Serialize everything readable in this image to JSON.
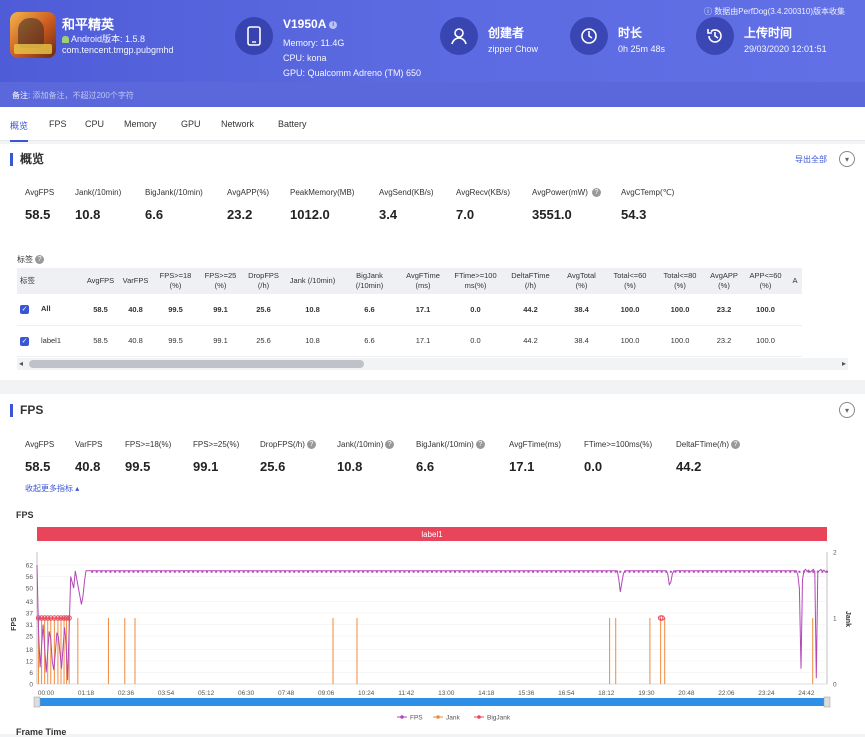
{
  "app": {
    "name": "和平精英",
    "android": "Android版本: 1.5.8",
    "package": "com.tencent.tmgp.pubgmhd"
  },
  "device": {
    "model": "V1950A",
    "memory": "Memory: 11.4G",
    "cpu": "CPU: kona",
    "gpu": "GPU: Qualcomm Adreno (TM) 650"
  },
  "creator": {
    "title": "创建者",
    "value": "zipper Chow"
  },
  "duration": {
    "title": "时长",
    "value": "0h 25m 48s"
  },
  "upload": {
    "title": "上传时间",
    "value": "29/03/2020 12:01:51"
  },
  "version_note": "数据由PerfDog(3.4.200310)版本收集",
  "note": {
    "label": "备注:",
    "placeholder": "添加备注，不超过200个字符"
  },
  "tabs": [
    "概览",
    "FPS",
    "CPU",
    "Memory",
    "GPU",
    "Network",
    "Battery"
  ],
  "overview": {
    "title": "概览",
    "export": "导出全部",
    "metrics": [
      {
        "label": "AvgFPS",
        "value": "58.5"
      },
      {
        "label": "Jank(/10min)",
        "value": "10.8"
      },
      {
        "label": "BigJank(/10min)",
        "value": "6.6"
      },
      {
        "label": "AvgAPP(%)",
        "value": "23.2"
      },
      {
        "label": "PeakMemory(MB)",
        "value": "1012.0"
      },
      {
        "label": "AvgSend(KB/s)",
        "value": "3.4"
      },
      {
        "label": "AvgRecv(KB/s)",
        "value": "7.0"
      },
      {
        "label": "AvgPower(mW)",
        "value": "3551.0"
      },
      {
        "label": "AvgCTemp(℃)",
        "value": "54.3"
      }
    ]
  },
  "labels": {
    "title": "标签",
    "headers": [
      [
        "标签"
      ],
      [
        "AvgFPS"
      ],
      [
        "VarFPS"
      ],
      [
        "FPS>=18",
        "(%)"
      ],
      [
        "FPS>=25",
        "(%)"
      ],
      [
        "DropFPS",
        "(/h)"
      ],
      [
        "Jank (/10min)",
        ""
      ],
      [
        "BigJank",
        "(/10min)"
      ],
      [
        "AvgFTime",
        "(ms)"
      ],
      [
        "FTime>=100",
        "ms(%)"
      ],
      [
        "DeltaFTime",
        "(/h)"
      ],
      [
        "AvgTotal",
        "(%)"
      ],
      [
        "Total<=60",
        "(%)"
      ],
      [
        "Total<=80",
        "(%)"
      ],
      [
        "AvgAPP",
        "(%)"
      ],
      [
        "APP<=60",
        "(%)"
      ],
      [
        "A"
      ]
    ],
    "rows": [
      {
        "name": "All",
        "values": [
          "58.5",
          "40.8",
          "99.5",
          "99.1",
          "25.6",
          "10.8",
          "6.6",
          "17.1",
          "0.0",
          "44.2",
          "38.4",
          "100.0",
          "100.0",
          "23.2",
          "100.0"
        ]
      },
      {
        "name": "label1",
        "values": [
          "58.5",
          "40.8",
          "99.5",
          "99.1",
          "25.6",
          "10.8",
          "6.6",
          "17.1",
          "0.0",
          "44.2",
          "38.4",
          "100.0",
          "100.0",
          "23.2",
          "100.0"
        ]
      }
    ]
  },
  "fps_section": {
    "title": "FPS",
    "metrics": [
      {
        "label": "AvgFPS",
        "value": "58.5"
      },
      {
        "label": "VarFPS",
        "value": "40.8"
      },
      {
        "label": "FPS>=18(%)",
        "value": "99.5"
      },
      {
        "label": "FPS>=25(%)",
        "value": "99.1"
      },
      {
        "label": "DropFPS(/h)",
        "value": "25.6"
      },
      {
        "label": "Jank(/10min)",
        "value": "10.8"
      },
      {
        "label": "BigJank(/10min)",
        "value": "6.6"
      },
      {
        "label": "AvgFTime(ms)",
        "value": "17.1"
      },
      {
        "label": "FTime>=100ms(%)",
        "value": "0.0"
      },
      {
        "label": "DeltaFTime(/h)",
        "value": "44.2"
      }
    ],
    "collapse": "收起更多指标",
    "chart_title": "FPS"
  },
  "next_title": "Frame Time",
  "chart_data": {
    "type": "line",
    "title": "FPS",
    "band_label": "label1",
    "ylabel": "FPS",
    "y2label": "Jank",
    "yticks": [
      0,
      6,
      12,
      18,
      25,
      31,
      37,
      43,
      50,
      56,
      62
    ],
    "y2ticks": [
      0,
      1,
      2
    ],
    "xticks": [
      "00:00",
      "01:18",
      "02:36",
      "03:54",
      "05:12",
      "06:30",
      "07:48",
      "09:06",
      "10:24",
      "11:42",
      "13:00",
      "14:18",
      "15:36",
      "16:54",
      "18:12",
      "19:30",
      "20:48",
      "22:06",
      "23:24",
      "24:42"
    ],
    "xlim_sec": [
      0,
      1548
    ],
    "ylim": [
      0,
      62
    ],
    "legend": [
      "FPS",
      "Jank",
      "BigJank"
    ],
    "legend_position": "bottom",
    "colors": {
      "FPS": "#b447b8",
      "Jank": "#f08a3e",
      "BigJank": "#e8455a"
    },
    "fps_baseline": 59,
    "fps_dips": [
      {
        "t": 0,
        "v": 62
      },
      {
        "t": 5,
        "v": 5
      },
      {
        "t": 12,
        "v": 31
      },
      {
        "t": 18,
        "v": 6
      },
      {
        "t": 25,
        "v": 31
      },
      {
        "t": 32,
        "v": 4
      },
      {
        "t": 40,
        "v": 30
      },
      {
        "t": 48,
        "v": 8
      },
      {
        "t": 55,
        "v": 33
      },
      {
        "t": 60,
        "v": 2
      },
      {
        "t": 66,
        "v": 56
      },
      {
        "t": 72,
        "v": 50
      },
      {
        "t": 75,
        "v": 59
      },
      {
        "t": 88,
        "v": 40
      },
      {
        "t": 95,
        "v": 59
      },
      {
        "t": 1138,
        "v": 59
      },
      {
        "t": 1143,
        "v": 48
      },
      {
        "t": 1150,
        "v": 59
      },
      {
        "t": 1235,
        "v": 59
      },
      {
        "t": 1240,
        "v": 50
      },
      {
        "t": 1246,
        "v": 59
      },
      {
        "t": 1490,
        "v": 59
      },
      {
        "t": 1496,
        "v": 45
      },
      {
        "t": 1502,
        "v": 59
      }
    ],
    "jank_times": [
      3,
      9,
      15,
      21,
      27,
      34,
      41,
      47,
      53,
      58,
      63,
      80,
      140,
      172,
      192,
      580,
      627,
      1122,
      1134,
      1201,
      1222,
      1230,
      1520
    ],
    "bigjank_times": [
      3,
      9,
      15,
      21,
      27,
      34,
      41,
      47,
      53,
      58,
      63,
      1222,
      1225
    ],
    "big_dropouts": [
      {
        "t": 1496,
        "v": 8
      },
      {
        "t": 1528,
        "v": 3
      }
    ]
  }
}
